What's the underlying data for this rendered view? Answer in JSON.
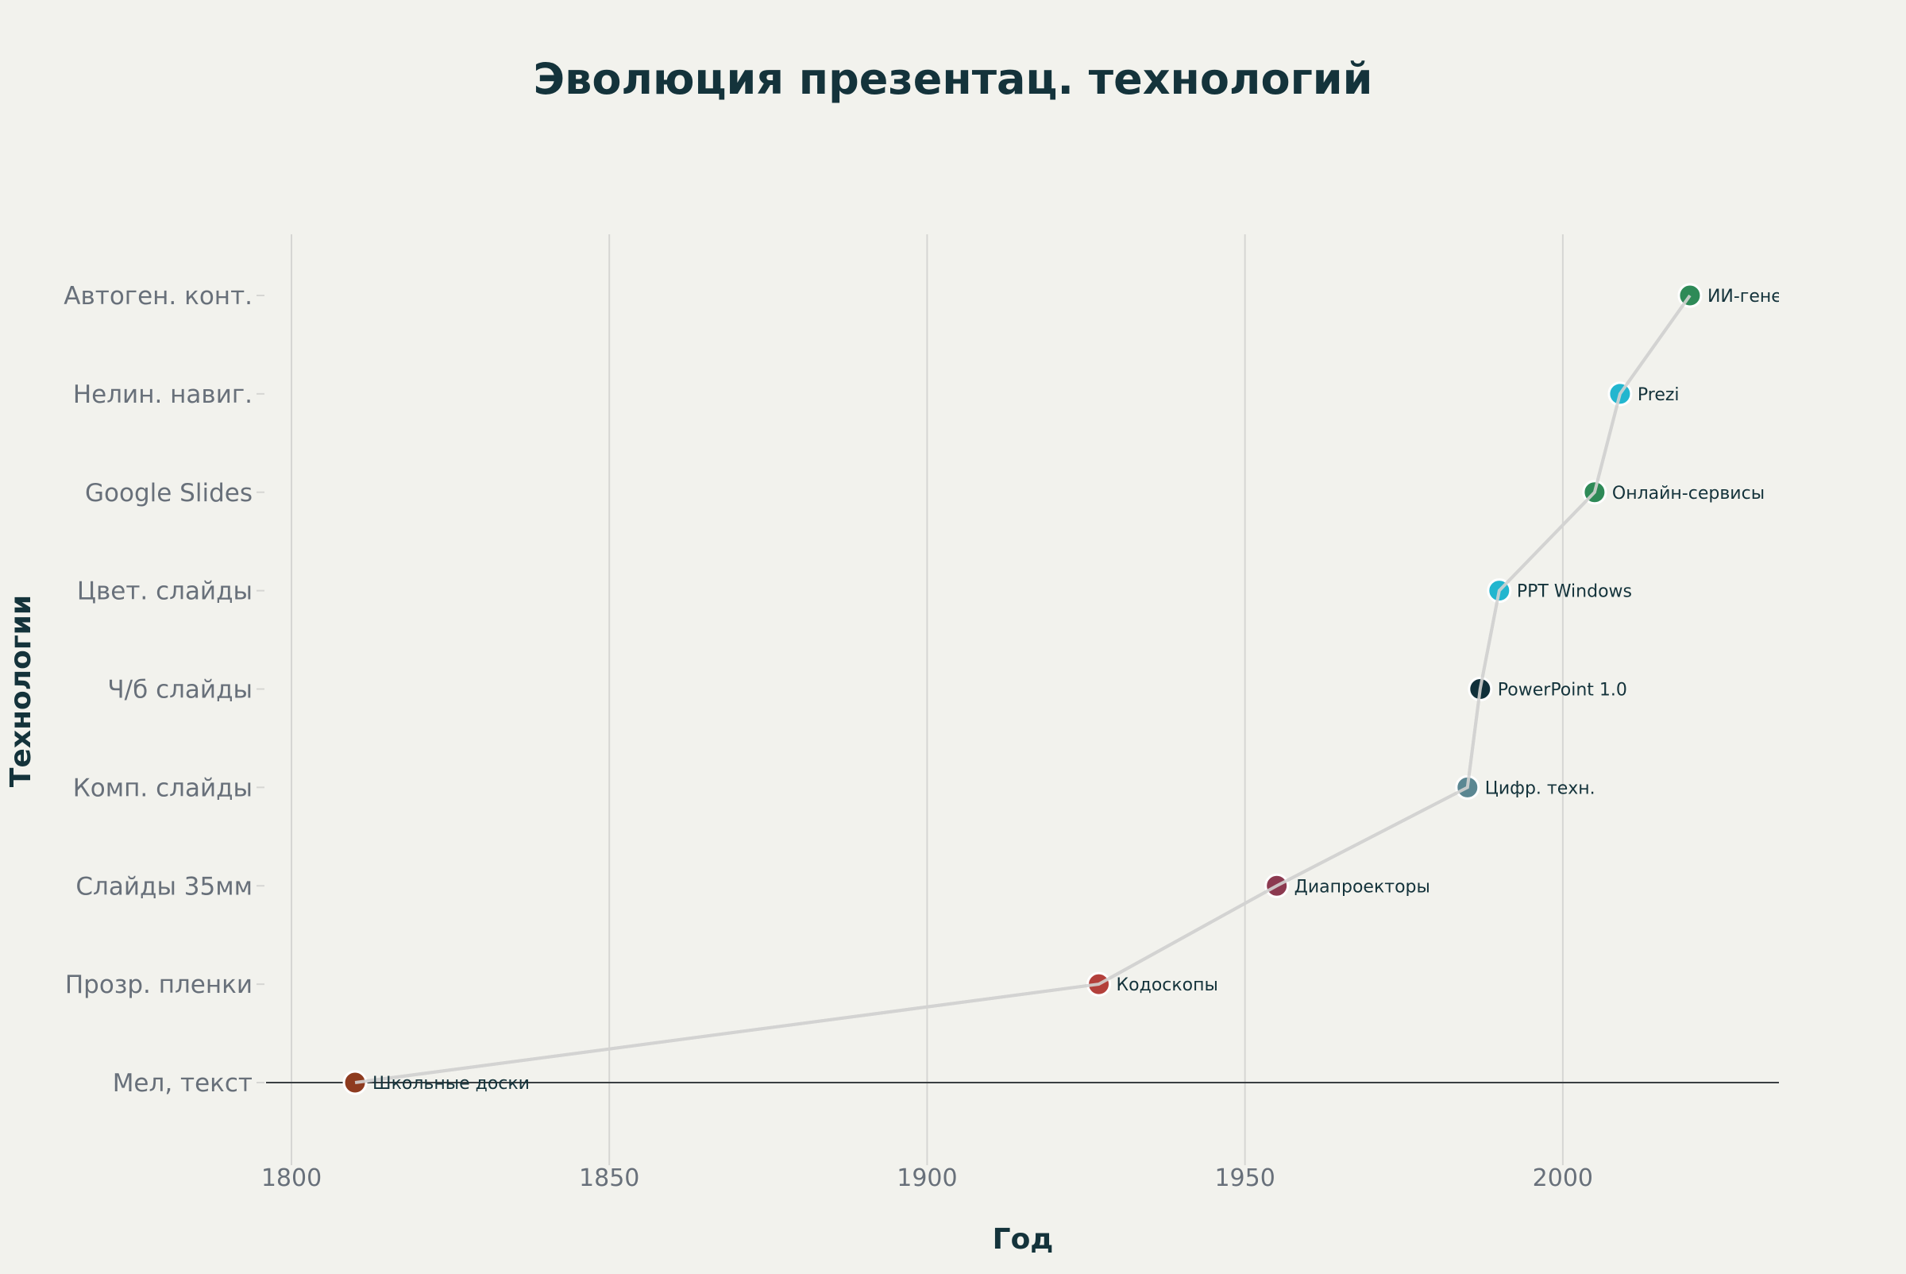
{
  "chart_data": {
    "type": "line",
    "title": "Эволюция презентац. технологий",
    "xlabel": "Год",
    "ylabel": "Технологии",
    "xlim": [
      1796,
      2034
    ],
    "xticks": [
      1800,
      1850,
      1900,
      1950,
      2000
    ],
    "categories": [
      "Мел, текст",
      "Прозр. пленки",
      "Слайды 35мм",
      "Комп. слайды",
      "Ч/б слайды",
      "Цвет. слайды",
      "Google Slides",
      "Нелин. навиг.",
      "Автоген. конт."
    ],
    "grid": "vertical",
    "points": [
      {
        "x": 1810,
        "category": "Мел, текст",
        "label": "Школьные доски",
        "color": "#8e3b1f"
      },
      {
        "x": 1927,
        "category": "Прозр. пленки",
        "label": "Кодоскопы",
        "color": "#b3403b"
      },
      {
        "x": 1955,
        "category": "Слайды 35мм",
        "label": "Диапроекторы",
        "color": "#8c3a50"
      },
      {
        "x": 1985,
        "category": "Комп. слайды",
        "label": "Цифр. техн.",
        "color": "#5b8792"
      },
      {
        "x": 1987,
        "category": "Ч/б слайды",
        "label": "PowerPoint 1.0",
        "color": "#10303a"
      },
      {
        "x": 1990,
        "category": "Цвет. слайды",
        "label": "PPT Windows",
        "color": "#22b6cf"
      },
      {
        "x": 2005,
        "category": "Google Slides",
        "label": "Онлайн-сервисы",
        "color": "#2e8a57"
      },
      {
        "x": 2009,
        "category": "Нелин. навиг.",
        "label": "Prezi",
        "color": "#22b6cf"
      },
      {
        "x": 2020,
        "category": "Автоген. конт.",
        "label": "ИИ-гене",
        "color": "#2e8a57"
      }
    ],
    "line_color": "#d3d3d1",
    "background": "#f2f2ed",
    "title_color": "#14333b"
  }
}
